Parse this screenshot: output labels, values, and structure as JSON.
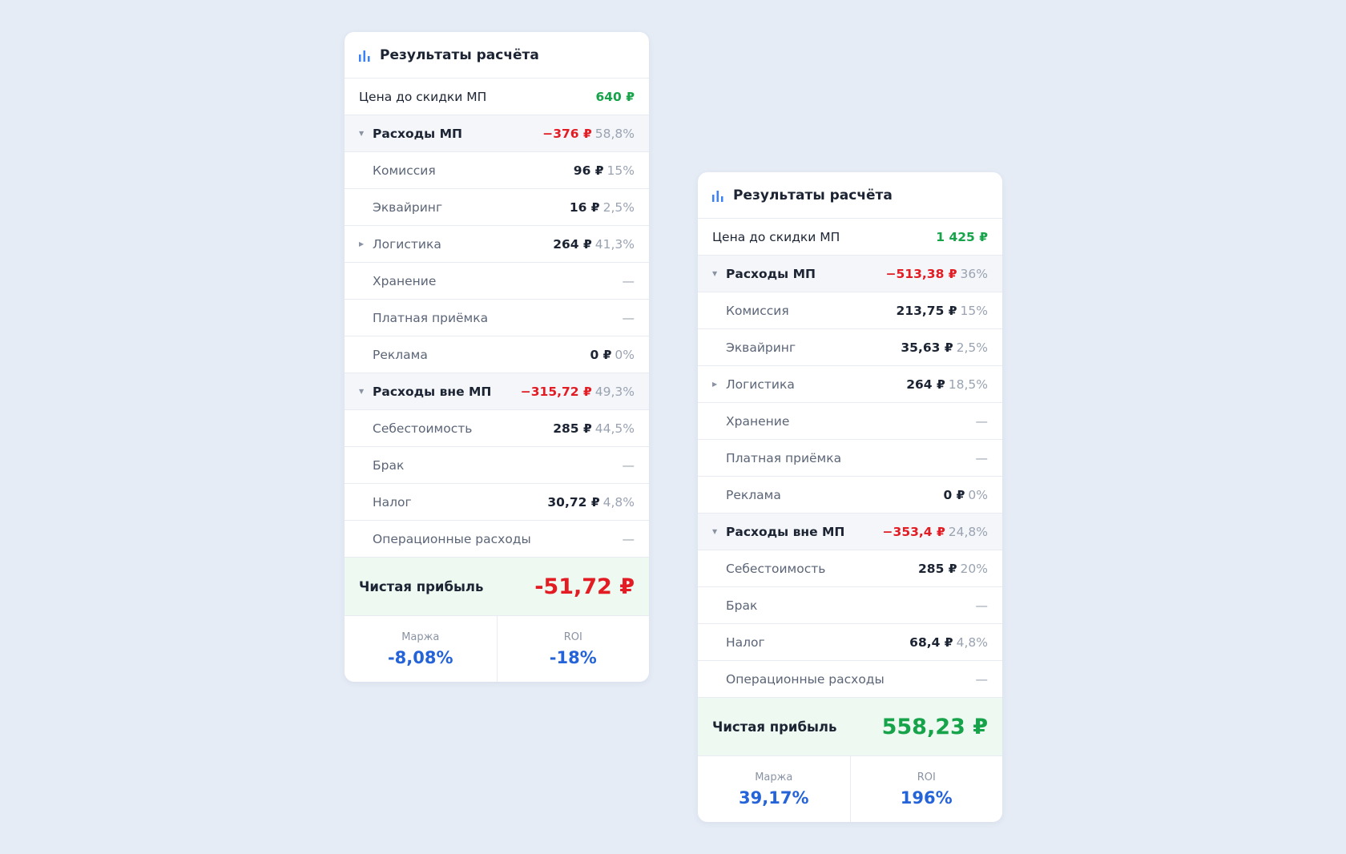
{
  "cards": [
    {
      "title": "Результаты расчёта",
      "price": {
        "label": "Цена до скидки МП",
        "value": "640 ₽"
      },
      "groups": [
        {
          "label": "Расходы МП",
          "value": "−376 ₽",
          "share": "58,8%",
          "items": [
            {
              "label": "Комиссия",
              "value": "96 ₽",
              "share": "15%"
            },
            {
              "label": "Эквайринг",
              "value": "16 ₽",
              "share": "2,5%"
            },
            {
              "label": "Логистика",
              "value": "264 ₽",
              "share": "41,3%",
              "expandable": true
            },
            {
              "label": "Хранение",
              "value": "—"
            },
            {
              "label": "Платная приёмка",
              "value": "—"
            },
            {
              "label": "Реклама",
              "value": "0 ₽",
              "share": "0%"
            }
          ]
        },
        {
          "label": "Расходы вне МП",
          "value": "−315,72 ₽",
          "share": "49,3%",
          "items": [
            {
              "label": "Себестоимость",
              "value": "285 ₽",
              "share": "44,5%"
            },
            {
              "label": "Брак",
              "value": "—"
            },
            {
              "label": "Налог",
              "value": "30,72 ₽",
              "share": "4,8%"
            },
            {
              "label": "Операционные расходы",
              "value": "—"
            }
          ]
        }
      ],
      "profit": {
        "label": "Чистая прибыль",
        "value": "-51,72 ₽",
        "color": "#e31b23"
      },
      "metrics": [
        {
          "label": "Маржа",
          "value": "-8,08%"
        },
        {
          "label": "ROI",
          "value": "-18%"
        }
      ]
    },
    {
      "title": "Результаты расчёта",
      "price": {
        "label": "Цена до скидки МП",
        "value": "1 425 ₽"
      },
      "groups": [
        {
          "label": "Расходы МП",
          "value": "−513,38 ₽",
          "share": "36%",
          "items": [
            {
              "label": "Комиссия",
              "value": "213,75 ₽",
              "share": "15%"
            },
            {
              "label": "Эквайринг",
              "value": "35,63 ₽",
              "share": "2,5%"
            },
            {
              "label": "Логистика",
              "value": "264 ₽",
              "share": "18,5%",
              "expandable": true
            },
            {
              "label": "Хранение",
              "value": "—"
            },
            {
              "label": "Платная приёмка",
              "value": "—"
            },
            {
              "label": "Реклама",
              "value": "0 ₽",
              "share": "0%"
            }
          ]
        },
        {
          "label": "Расходы вне МП",
          "value": "−353,4 ₽",
          "share": "24,8%",
          "items": [
            {
              "label": "Себестоимость",
              "value": "285 ₽",
              "share": "20%"
            },
            {
              "label": "Брак",
              "value": "—"
            },
            {
              "label": "Налог",
              "value": "68,4 ₽",
              "share": "4,8%"
            },
            {
              "label": "Операционные расходы",
              "value": "—"
            }
          ]
        }
      ],
      "profit": {
        "label": "Чистая прибыль",
        "value": "558,23 ₽",
        "color": "#16a34a"
      },
      "metrics": [
        {
          "label": "Маржа",
          "value": "39,17%"
        },
        {
          "label": "ROI",
          "value": "196%"
        }
      ]
    }
  ]
}
